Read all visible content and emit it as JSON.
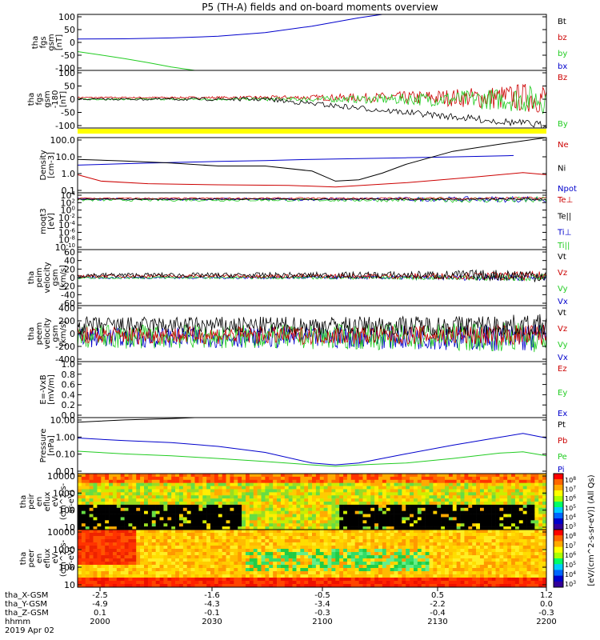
{
  "title": "P5 (TH-A) fields and on-board moments overview",
  "colors": {
    "black": "#000000",
    "red": "#cc0000",
    "green": "#00cc00",
    "blue": "#0000cc",
    "lime": "#22cc22",
    "yellow": "#ffff00"
  },
  "chart_data": [
    {
      "type": "line",
      "id": "fgs",
      "ylabel": [
        "tha",
        "fgs",
        "gsm",
        "[nT]"
      ],
      "ylim": [
        -100,
        100
      ],
      "ticks": [
        "100",
        "50",
        "0",
        "-50",
        "-100"
      ],
      "legend": [
        {
          "label": "Bt",
          "color": "#000000"
        },
        {
          "label": "bz",
          "color": "#cc0000"
        },
        {
          "label": "by",
          "color": "#22cc22"
        },
        {
          "label": "bx",
          "color": "#0000cc"
        }
      ],
      "series": [
        {
          "color": "#0000cc",
          "x": [
            0,
            0.1,
            0.2,
            0.3,
            0.4,
            0.5,
            0.6,
            0.65
          ],
          "y": [
            12,
            13,
            16,
            22,
            35,
            58,
            88,
            100
          ]
        },
        {
          "color": "#22cc22",
          "x": [
            0,
            0.05,
            0.1,
            0.15,
            0.2,
            0.25
          ],
          "y": [
            -33,
            -45,
            -58,
            -72,
            -88,
            -100
          ]
        }
      ]
    },
    {
      "type": "line",
      "id": "fgs-180",
      "ylabel": [
        "tha",
        "fgs",
        "gsm",
        "-180",
        "[nT]"
      ],
      "ylim": [
        -125,
        125
      ],
      "ticks": [
        "100",
        "50",
        "0",
        "-50",
        "-100"
      ],
      "legend": [
        {
          "label": "Bz",
          "color": "#cc0000"
        },
        {
          "label": "By",
          "color": "#22cc22"
        }
      ]
    },
    {
      "type": "line",
      "id": "density",
      "scale": "log",
      "ylabel": [
        "Density",
        "[cm-3]"
      ],
      "ylim": [
        0.1,
        200
      ],
      "ticks": [
        "100.0",
        "10.0",
        "1.0",
        "0.1"
      ],
      "legend": [
        {
          "label": "Ne",
          "color": "#cc0000"
        },
        {
          "label": "Ni",
          "color": "#000000"
        },
        {
          "label": "Npot",
          "color": "#0000cc"
        }
      ],
      "series": [
        {
          "color": "#0000cc",
          "x": [
            0,
            0.1,
            0.2,
            0.3,
            0.4,
            0.5,
            0.6,
            0.7,
            0.8,
            0.9,
            0.93
          ],
          "y": [
            4.5,
            5.5,
            6.5,
            7.5,
            8.5,
            10,
            11,
            12.5,
            14,
            16,
            17
          ]
        },
        {
          "color": "#000000",
          "x": [
            0,
            0.1,
            0.2,
            0.3,
            0.4,
            0.5,
            0.55,
            0.6,
            0.65,
            0.7,
            0.8,
            0.9,
            1.0
          ],
          "y": [
            10,
            8,
            6,
            4,
            4,
            2,
            0.5,
            0.6,
            1.5,
            5,
            30,
            80,
            200
          ]
        },
        {
          "color": "#cc0000",
          "x": [
            0,
            0.05,
            0.15,
            0.3,
            0.45,
            0.55,
            0.7,
            0.85,
            0.95,
            1.0
          ],
          "y": [
            1.2,
            0.5,
            0.35,
            0.3,
            0.28,
            0.22,
            0.4,
            0.9,
            1.6,
            1.2
          ]
        }
      ]
    },
    {
      "type": "line",
      "id": "moqt",
      "scale": "log",
      "ylabel": [
        "moqt3",
        "[eV]"
      ],
      "ticks": [
        "10^4",
        "10^2",
        "10^0",
        "10^-2",
        "10^-4",
        "10^-6",
        "10^-8",
        "10^-10"
      ],
      "legend": [
        {
          "label": "Te⊥",
          "color": "#cc0000"
        },
        {
          "label": "Te||",
          "color": "#000000"
        },
        {
          "label": "Ti⊥",
          "color": "#0000cc"
        },
        {
          "label": "Ti||",
          "color": "#22cc22"
        }
      ]
    },
    {
      "type": "line",
      "id": "peim",
      "ylabel": [
        "tha",
        "peim",
        "velocity",
        "gsm",
        "[km/s]"
      ],
      "ylim": [
        -60,
        60
      ],
      "ticks": [
        "60",
        "40",
        "20",
        "0",
        "-20",
        "-40",
        "-60"
      ],
      "legend": [
        {
          "label": "Vt",
          "color": "#000000"
        },
        {
          "label": "Vz",
          "color": "#cc0000"
        },
        {
          "label": "Vy",
          "color": "#22cc22"
        },
        {
          "label": "Vx",
          "color": "#0000cc"
        }
      ]
    },
    {
      "type": "line",
      "id": "peem",
      "ylabel": [
        "tha",
        "peem",
        "velocity",
        "gsm",
        "[km/s]"
      ],
      "ylim": [
        -400,
        400
      ],
      "ticks": [
        "400",
        "200",
        "0",
        "-200",
        "-400"
      ],
      "legend": [
        {
          "label": "Vt",
          "color": "#000000"
        },
        {
          "label": "Vz",
          "color": "#cc0000"
        },
        {
          "label": "Vy",
          "color": "#22cc22"
        },
        {
          "label": "Vx",
          "color": "#0000cc"
        }
      ]
    },
    {
      "type": "line",
      "id": "efield",
      "ylabel": [
        "E=-VxB",
        "[mV/m]"
      ],
      "ylim": [
        0,
        1
      ],
      "ticks": [
        "1.0",
        "0.8",
        "0.6",
        "0.4",
        "0.2",
        "0.0"
      ],
      "legend": [
        {
          "label": "Ez",
          "color": "#cc0000"
        },
        {
          "label": "Ey",
          "color": "#22cc22"
        },
        {
          "label": "Ex",
          "color": "#0000cc"
        }
      ]
    },
    {
      "type": "line",
      "id": "pressure",
      "scale": "log",
      "ylabel": [
        "Pressure",
        "[nPa]"
      ],
      "ylim": [
        0.004,
        20
      ],
      "ticks": [
        "10.00",
        "1.00",
        "0.10",
        "0.01"
      ],
      "legend": [
        {
          "label": "Pt",
          "color": "#000000"
        },
        {
          "label": "Pb",
          "color": "#cc0000"
        },
        {
          "label": "Pe",
          "color": "#22cc22"
        },
        {
          "label": "Pi",
          "color": "#0000cc"
        }
      ],
      "series": [
        {
          "color": "#000000",
          "x": [
            0,
            0.1,
            0.2,
            0.25
          ],
          "y": [
            10,
            14,
            17,
            20
          ]
        },
        {
          "color": "#0000cc",
          "x": [
            0,
            0.1,
            0.2,
            0.3,
            0.4,
            0.5,
            0.55,
            0.6,
            0.7,
            0.8,
            0.9,
            0.95,
            1.0
          ],
          "y": [
            0.9,
            0.6,
            0.45,
            0.25,
            0.1,
            0.02,
            0.015,
            0.02,
            0.08,
            0.3,
            1.0,
            1.8,
            0.9
          ]
        },
        {
          "color": "#22cc22",
          "x": [
            0,
            0.1,
            0.2,
            0.3,
            0.4,
            0.5,
            0.55,
            0.6,
            0.7,
            0.8,
            0.9,
            0.95,
            1.0
          ],
          "y": [
            0.12,
            0.08,
            0.06,
            0.04,
            0.025,
            0.015,
            0.012,
            0.015,
            0.02,
            0.04,
            0.09,
            0.11,
            0.06
          ]
        }
      ]
    },
    {
      "type": "heatmap",
      "id": "peir",
      "ylabel": [
        "tha",
        "peir",
        "en",
        "eflux",
        "eV",
        "(cm^2-s-",
        "sr-eV)"
      ],
      "ticks": [
        "10000",
        "1000",
        "100",
        "10"
      ],
      "colorbar_label": "[eV/(cm^2-s-sr-eV)] (All Qs)"
    },
    {
      "type": "heatmap",
      "id": "peer",
      "ylabel": [
        "tha",
        "peer",
        "en",
        "eflux",
        "eV",
        "(cm^2-s-",
        "sr-eV)"
      ],
      "ticks": [
        "10000",
        "1000",
        "100",
        "10"
      ],
      "colorbar_label": "[eV/(cm^2-s-sr-eV)] (All Qs)"
    }
  ],
  "colorbar_ticks": [
    "10^8",
    "10^7",
    "10^6",
    "10^5",
    "10^4",
    "10^3"
  ],
  "xaxis": {
    "row_labels": [
      "tha_X-GSM",
      "tha_Y-GSM",
      "tha_Z-GSM",
      "hhmm",
      "2019 Apr 02"
    ],
    "columns": [
      [
        "-2.5",
        "-4.9",
        "0.1",
        "2000"
      ],
      [
        "-1.6",
        "-4.3",
        "-0.1",
        "2030"
      ],
      [
        "-0.5",
        "-3.4",
        "-0.3",
        "2100"
      ],
      [
        "0.5",
        "-2.2",
        "-0.4",
        "2130"
      ],
      [
        "1.2",
        "0.0",
        "-0.3",
        "2200"
      ]
    ]
  }
}
